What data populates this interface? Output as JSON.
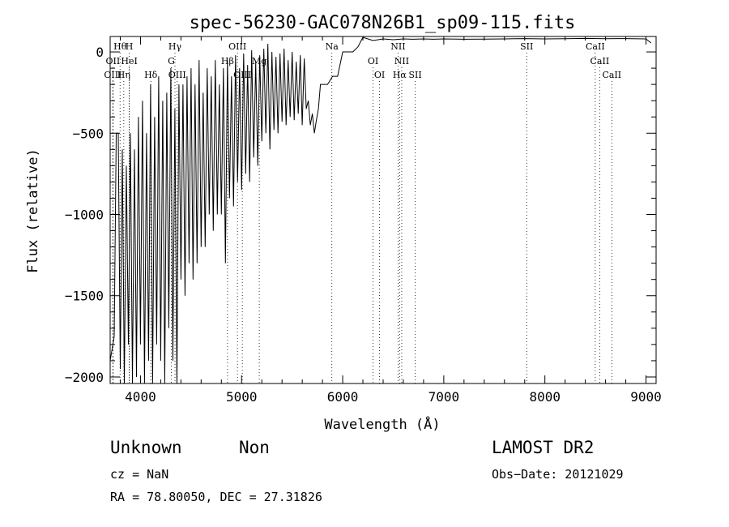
{
  "chart_data": {
    "type": "line",
    "title": "spec-56230-GAC078N26B1_sp09-115.fits",
    "xlabel": "Wavelength (Å)",
    "ylabel": "Flux (relative)",
    "xlim": [
      3700,
      9100
    ],
    "ylim": [
      -2040,
      95
    ],
    "xticks": [
      4000,
      5000,
      6000,
      7000,
      8000,
      9000
    ],
    "xtick_labels": [
      "4000",
      "5000",
      "6000",
      "7000",
      "8000",
      "9000"
    ],
    "yticks": [
      0,
      -500,
      -1000,
      -1500,
      -2000
    ],
    "ytick_labels": [
      "0",
      "−500",
      "−1000",
      "−1500",
      "−2000"
    ],
    "grid": false,
    "legend": "none",
    "series": [
      {
        "x": [
          3700,
          3740,
          3760,
          3780,
          3800,
          3820,
          3840,
          3860,
          3880,
          3900,
          3920,
          3940,
          3960,
          3980,
          4000,
          4020,
          4040,
          4060,
          4080,
          4100,
          4120,
          4140,
          4160,
          4180,
          4200,
          4220,
          4240,
          4260,
          4280,
          4300,
          4320,
          4340,
          4360,
          4380,
          4400,
          4420,
          4440,
          4460,
          4480,
          4500,
          4520,
          4540,
          4560,
          4580,
          4600,
          4620,
          4640,
          4660,
          4680,
          4700,
          4720,
          4740,
          4760,
          4780,
          4800,
          4820,
          4840,
          4860,
          4880,
          4900,
          4920,
          4940,
          4960,
          4980,
          5000,
          5020,
          5040,
          5060,
          5080,
          5100,
          5120,
          5140,
          5160,
          5180,
          5200,
          5220,
          5240,
          5260,
          5280,
          5300,
          5320,
          5340,
          5360,
          5380,
          5400,
          5420,
          5440,
          5460,
          5480,
          5500,
          5520,
          5540,
          5560,
          5580,
          5600,
          5620,
          5640,
          5660,
          5680,
          5700,
          5720,
          5740,
          5760,
          5780,
          5800,
          5850,
          5900,
          5950,
          6000,
          6050,
          6100,
          6150,
          6200,
          6300,
          6400,
          6500,
          6600,
          6700,
          6800,
          6900,
          7000,
          7200,
          7400,
          7600,
          7800,
          8000,
          8200,
          8400,
          8600,
          8800,
          9000,
          9050
        ],
        "y": [
          -1900,
          -1750,
          -500,
          -500,
          -1950,
          -600,
          -2050,
          -700,
          -1800,
          -500,
          -2050,
          -600,
          -2000,
          -400,
          -1800,
          -300,
          -2050,
          -500,
          -1900,
          -200,
          -2050,
          -400,
          -1800,
          -150,
          -1900,
          -300,
          -2050,
          -250,
          -1700,
          -100,
          -1900,
          -350,
          -2050,
          -200,
          -1400,
          -200,
          -1500,
          -150,
          -1300,
          -100,
          -1400,
          -200,
          -1300,
          -50,
          -1200,
          -250,
          -1200,
          -100,
          -1000,
          -150,
          -1100,
          -50,
          -1000,
          -200,
          -1000,
          -100,
          -1300,
          -50,
          -900,
          -150,
          -950,
          -20,
          -800,
          -100,
          -850,
          -10,
          -750,
          -80,
          -800,
          10,
          -650,
          -60,
          -700,
          -20,
          -550,
          20,
          -500,
          50,
          -600,
          0,
          -480,
          -30,
          -500,
          -10,
          -430,
          20,
          -450,
          -50,
          -400,
          0,
          -420,
          -60,
          -380,
          -20,
          -450,
          -40,
          -350,
          -300,
          -450,
          -380,
          -500,
          -420,
          -350,
          -200,
          -200,
          -200,
          -150,
          -150,
          0,
          0,
          0,
          30,
          90,
          70,
          80,
          75,
          80,
          78,
          80,
          78,
          80,
          78,
          79,
          80,
          82,
          80,
          81,
          83,
          81,
          82,
          80,
          55
        ]
      }
    ],
    "lines": [
      {
        "label": "Hθ",
        "x": 3798,
        "row": 0
      },
      {
        "label": "H",
        "x": 3889,
        "row": 0
      },
      {
        "label": "Hγ",
        "x": 4341,
        "row": 0
      },
      {
        "label": "OIII",
        "x": 4959,
        "row": 0
      },
      {
        "label": "Na",
        "x": 5893,
        "row": 0
      },
      {
        "label": "NII",
        "x": 6548,
        "row": 0
      },
      {
        "label": "SII",
        "x": 7820,
        "row": 0
      },
      {
        "label": "CaII",
        "x": 8498,
        "row": 0
      },
      {
        "label": "OII",
        "x": 3727,
        "row": 1
      },
      {
        "label": "HeI",
        "x": 3889,
        "row": 1
      },
      {
        "label": "G",
        "x": 4305,
        "row": 1
      },
      {
        "label": "Hβ",
        "x": 4861,
        "row": 1
      },
      {
        "label": "Mg",
        "x": 5175,
        "row": 1
      },
      {
        "label": "OI",
        "x": 6300,
        "row": 1
      },
      {
        "label": "NII",
        "x": 6584,
        "row": 1
      },
      {
        "label": "CaII",
        "x": 8542,
        "row": 1
      },
      {
        "label": "OIII",
        "x": 3727,
        "row": 2
      },
      {
        "label": "Hη",
        "x": 3835,
        "row": 2
      },
      {
        "label": "Hδ",
        "x": 4102,
        "row": 2
      },
      {
        "label": "OIII",
        "x": 4363,
        "row": 2
      },
      {
        "label": "OIII",
        "x": 5007,
        "row": 2
      },
      {
        "label": "OI",
        "x": 6364,
        "row": 2
      },
      {
        "label": "Hα",
        "x": 6563,
        "row": 2
      },
      {
        "label": "SII",
        "x": 6717,
        "row": 2
      },
      {
        "label": "CaII",
        "x": 8662,
        "row": 2
      }
    ]
  },
  "footer": {
    "class_label": "Unknown",
    "subclass_label": "Non",
    "survey": "LAMOST DR2",
    "cz": "cz = NaN",
    "obs_date": "Obs−Date: 20121029",
    "coords": "RA =  78.80050, DEC =  27.31826"
  }
}
